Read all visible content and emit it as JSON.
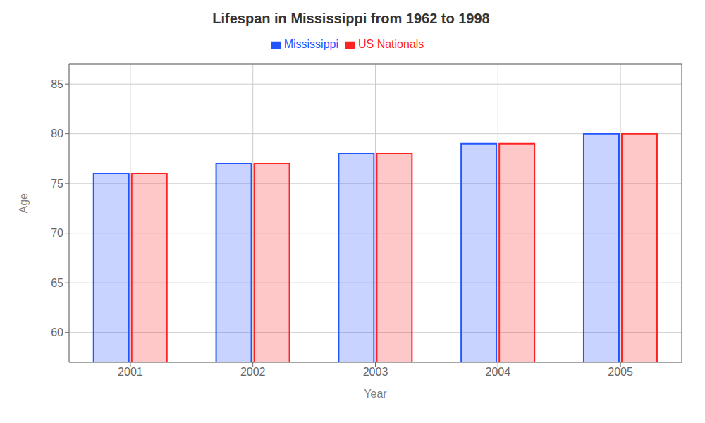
{
  "chart_data": {
    "type": "bar",
    "title": "Lifespan in Mississippi from 1962 to 1998",
    "xlabel": "Year",
    "ylabel": "Age",
    "categories": [
      "2001",
      "2002",
      "2003",
      "2004",
      "2005"
    ],
    "series": [
      {
        "name": "Mississippi",
        "color": "#2255ff",
        "values": [
          76,
          77,
          78,
          79,
          80
        ]
      },
      {
        "name": "US Nationals",
        "color": "#ff2222",
        "values": [
          76,
          77,
          78,
          79,
          80
        ]
      }
    ],
    "ylim": [
      57,
      87
    ],
    "yticks": [
      60,
      65,
      70,
      75,
      80,
      85
    ],
    "grid": true,
    "legend": "top"
  }
}
